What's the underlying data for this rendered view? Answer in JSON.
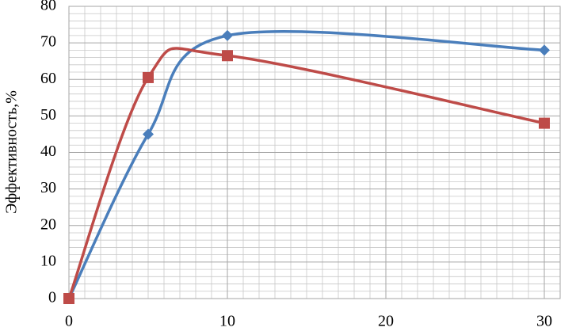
{
  "chart_data": {
    "type": "scatter",
    "y_label": "Эффективность,%",
    "xlim": [
      0,
      31
    ],
    "xticks": [
      0,
      10,
      20,
      30
    ],
    "ylim": [
      0,
      80
    ],
    "yticks": [
      0,
      10,
      20,
      30,
      40,
      50,
      60,
      70,
      80
    ],
    "grid": true,
    "smooth": true,
    "series": [
      {
        "color": "#4a7ebb",
        "marker": "diamond",
        "x": [
          0,
          5,
          10,
          30
        ],
        "values": [
          0,
          45,
          72,
          68
        ]
      },
      {
        "color": "#be4b48",
        "marker": "square",
        "x": [
          0,
          5,
          10,
          30
        ],
        "values": [
          0,
          60.5,
          66.5,
          48
        ]
      }
    ]
  }
}
